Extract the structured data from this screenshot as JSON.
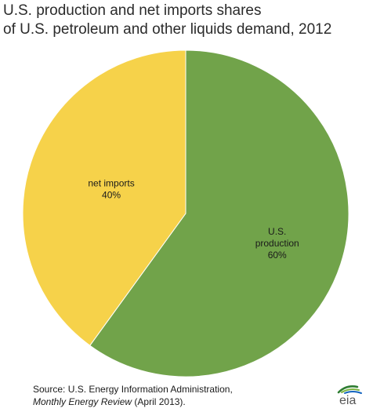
{
  "chart_data": {
    "type": "pie",
    "title": [
      "U.S. production and net imports shares",
      "of U.S. petroleum and other liquids demand,  2012"
    ],
    "slices": [
      {
        "label": [
          "U.S.",
          "production"
        ],
        "value": 60,
        "value_label": "60%",
        "color": "#71a34a"
      },
      {
        "label": [
          "net imports"
        ],
        "value": 40,
        "value_label": "40%",
        "color": "#f6d24a"
      }
    ],
    "legend": "none",
    "slice_border_color": "#ffffff"
  },
  "source": {
    "prefix": "Source:  U.S. Energy Information Administration,",
    "publication": "Monthly Energy Review",
    "suffix": " (April 2013)."
  },
  "logo": {
    "text": "eia",
    "icon": "eia-logo-icon",
    "colors": [
      "#2e7d32",
      "#7cb342",
      "#1565c0"
    ]
  }
}
